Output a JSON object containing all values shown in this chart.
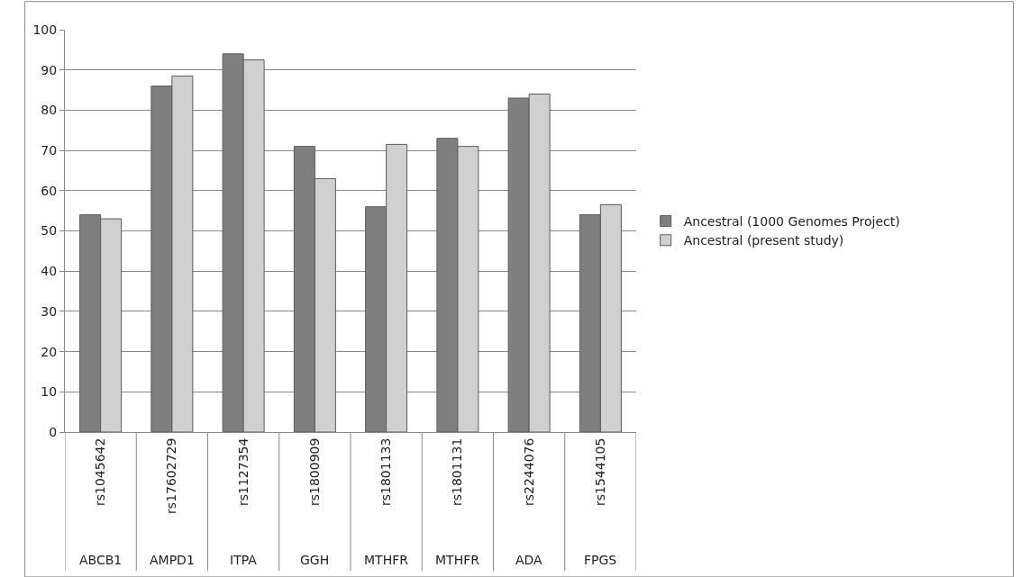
{
  "chart_data": {
    "type": "bar",
    "categories": [
      "rs1045642\nABCB1",
      "rs17602729\nAMPD1",
      "rs1127354\nITPA",
      "rs1800909\nGGH",
      "rs1801133\nMTHFR",
      "rs1801131\nMTHFR",
      "rs2244076\nADA",
      "rs1544105\nFPGS"
    ],
    "series": [
      {
        "name": "Ancestral (1000 Genomes Project)",
        "color": "#7f7f7f",
        "values": [
          54,
          86,
          94,
          71,
          56,
          73,
          83,
          54
        ]
      },
      {
        "name": "Ancestral (present study)",
        "color": "#d0d0d0",
        "values": [
          53,
          88.5,
          92.5,
          63,
          71.5,
          71,
          84,
          56.5
        ]
      }
    ],
    "ylim": [
      0,
      100
    ],
    "yticks": [
      0,
      10,
      20,
      30,
      40,
      50,
      60,
      70,
      80,
      90,
      100
    ],
    "grid": "y",
    "legend": "right"
  }
}
